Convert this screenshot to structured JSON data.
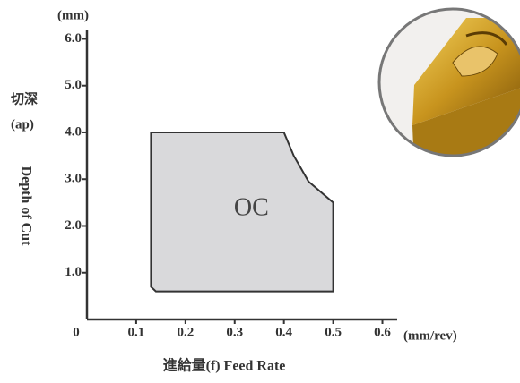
{
  "chart_data": {
    "type": "area",
    "y_unit": "(mm)",
    "x_unit": "(mm/rev)",
    "y_label_cn": "切深",
    "y_label_sym": "(ap)",
    "y_label": "Depth of Cut",
    "x_label": "進給量(f) Feed Rate",
    "xlim": [
      0,
      0.63
    ],
    "ylim": [
      0,
      6.2
    ],
    "xticks": [
      0,
      0.1,
      0.2,
      0.3,
      0.4,
      0.5,
      0.6
    ],
    "yticks": [
      {
        "value": 1,
        "label": "1.0"
      },
      {
        "value": 2,
        "label": "2.0"
      },
      {
        "value": 3,
        "label": "3.0"
      },
      {
        "value": 4,
        "label": "4.0"
      },
      {
        "value": 5,
        "label": "5.0"
      },
      {
        "value": 6,
        "label": "6.0"
      }
    ],
    "regions": [
      {
        "name": "OC",
        "color": "#d9d9db",
        "x": [
          0.13,
          0.4,
          0.42,
          0.45,
          0.5,
          0.5,
          0.14,
          0.13
        ],
        "y": [
          4.0,
          4.0,
          3.5,
          2.95,
          2.5,
          0.6,
          0.6,
          0.7
        ]
      }
    ]
  }
}
